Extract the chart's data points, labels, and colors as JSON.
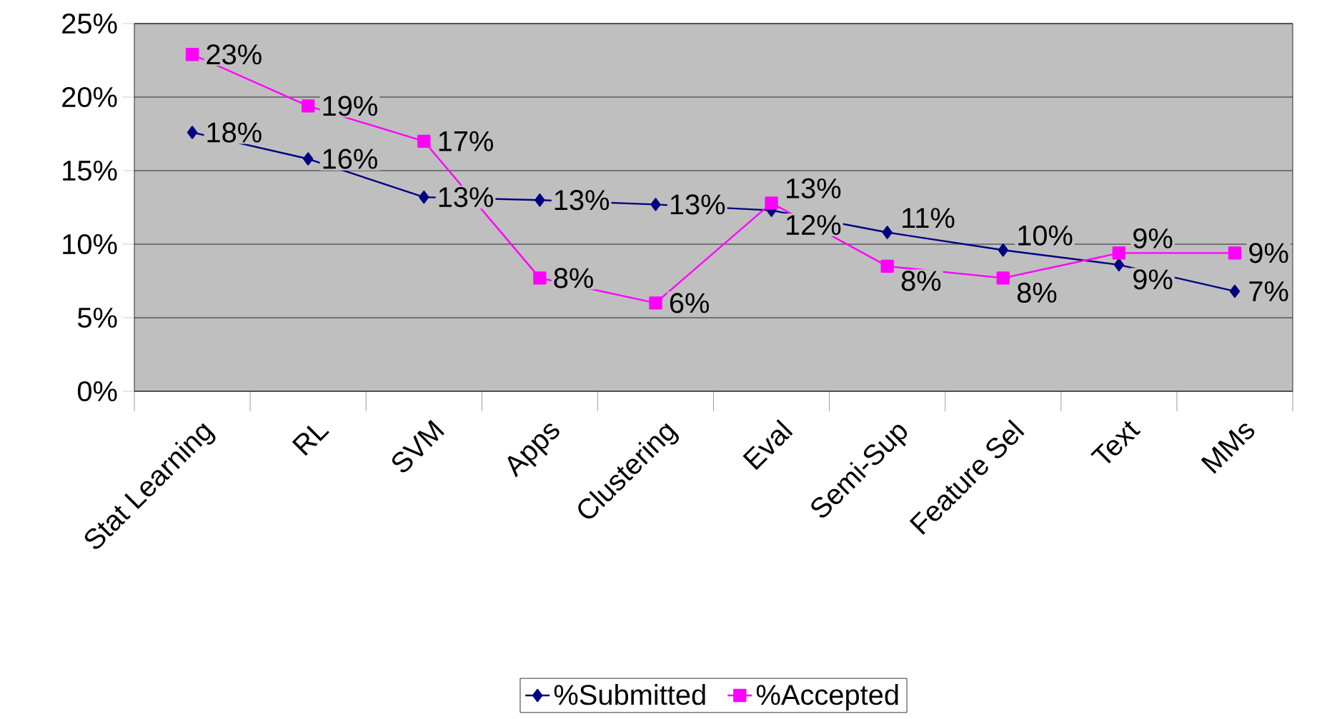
{
  "chart_data": {
    "type": "line",
    "categories": [
      "Stat Learning",
      "RL",
      "SVM",
      "Apps",
      "Clustering",
      "Eval",
      "Semi-Sup",
      "Feature Sel",
      "Text",
      "MMs"
    ],
    "series": [
      {
        "name": "%Submitted",
        "color": "#000080",
        "marker": "diamond",
        "values": [
          17.6,
          15.8,
          13.2,
          13.0,
          12.7,
          12.3,
          10.8,
          9.6,
          8.6,
          6.8
        ],
        "value_labels": [
          "18%",
          "16%",
          "13%",
          "13%",
          "13%",
          "12%",
          "11%",
          "10%",
          "9%",
          "7%"
        ]
      },
      {
        "name": "%Accepted",
        "color": "#ff00ff",
        "marker": "square",
        "values": [
          22.9,
          19.4,
          17.0,
          7.7,
          6.0,
          12.8,
          8.5,
          7.7,
          9.4,
          9.4
        ],
        "value_labels": [
          "23%",
          "19%",
          "17%",
          "8%",
          "6%",
          "13%",
          "8%",
          "8%",
          "9%",
          "9%"
        ]
      }
    ],
    "ylim": [
      0,
      25
    ],
    "yticks": [
      {
        "value": 0,
        "label": "0%"
      },
      {
        "value": 5,
        "label": "5%"
      },
      {
        "value": 10,
        "label": "10%"
      },
      {
        "value": 15,
        "label": "15%"
      },
      {
        "value": 20,
        "label": "20%"
      },
      {
        "value": 25,
        "label": "25%"
      }
    ],
    "grid": "y",
    "legend": "bottom"
  }
}
